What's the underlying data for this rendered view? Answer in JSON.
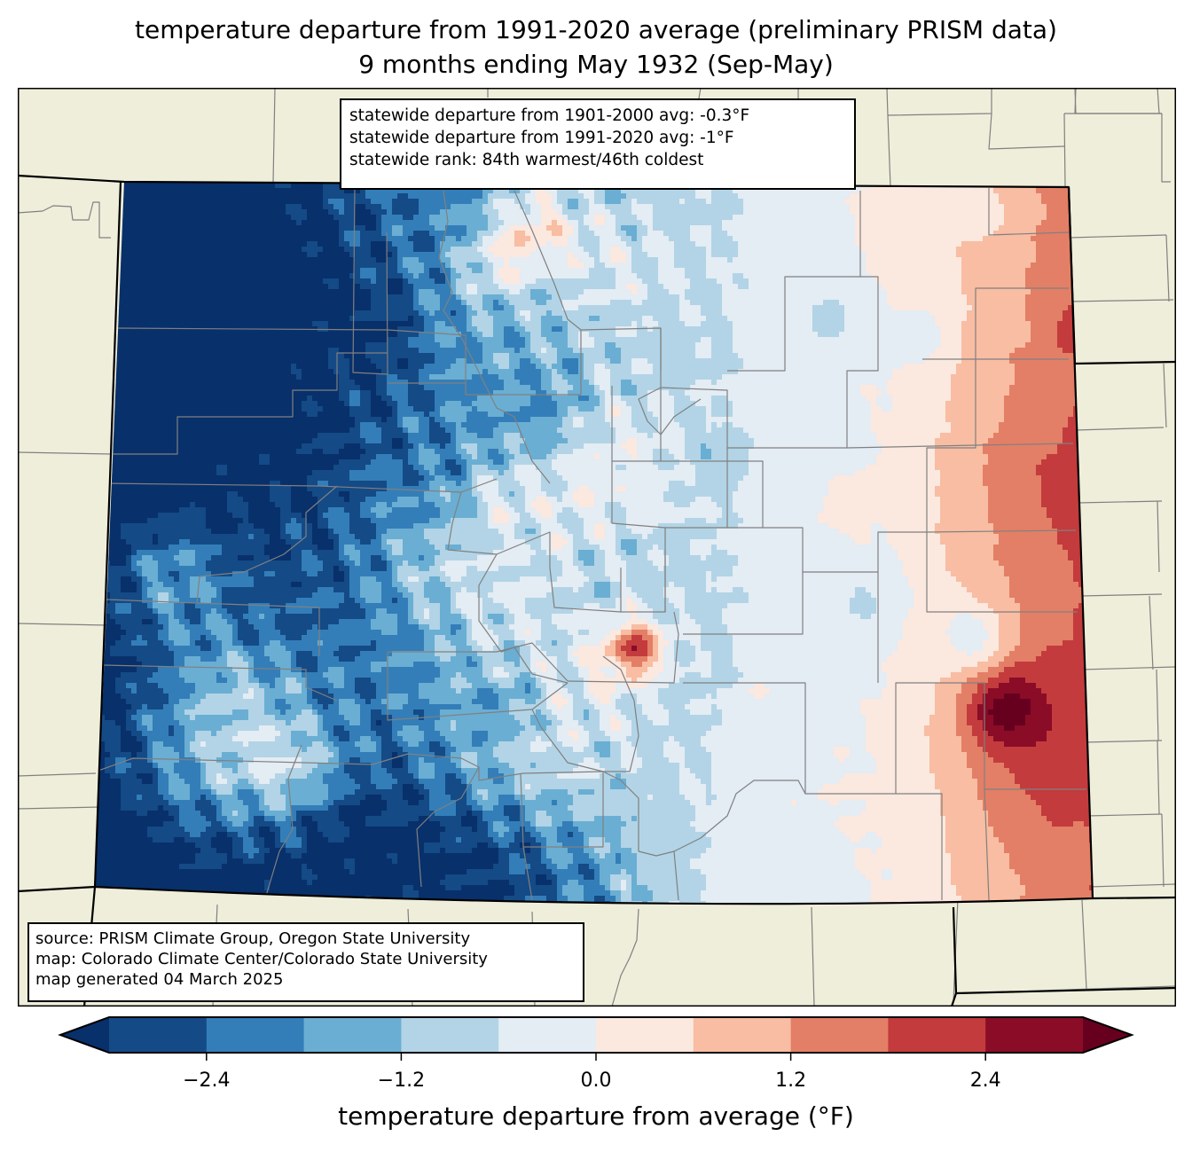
{
  "header": {
    "title_line1": "temperature departure from 1991-2020 average (preliminary PRISM data)",
    "title_line2": "9 months ending May 1932 (Sep-May)"
  },
  "stats_box": {
    "line1": "statewide departure from 1901-2000 avg: -0.3°F",
    "line2": "statewide departure from 1991-2020 avg: -1°F",
    "line3": "statewide rank: 84th warmest/46th coldest"
  },
  "source_box": {
    "line1": "source: PRISM Climate Group, Oregon State University",
    "line2": "map: Colorado Climate Center/Colorado State University",
    "line3": "map generated 04 March 2025"
  },
  "chart_data": {
    "type": "heatmap",
    "title": "temperature departure from 1991-2020 average (preliminary PRISM data)",
    "subtitle": "9 months ending May 1932 (Sep-May)",
    "region": "Colorado",
    "colorbar": {
      "label": "temperature departure from average (°F)",
      "levels": [
        -3.0,
        -2.4,
        -1.8,
        -1.2,
        -0.6,
        0.0,
        0.6,
        1.2,
        1.8,
        2.4,
        3.0
      ],
      "tick_values": [
        -2.4,
        -1.2,
        0.0,
        1.2,
        2.4
      ],
      "tick_labels": [
        "−2.4",
        "−1.2",
        "0.0",
        "1.2",
        "2.4"
      ],
      "extend": "both",
      "under_color": "#08306b",
      "over_color": "#67001f",
      "bin_colors": [
        "#144a86",
        "#337eb8",
        "#6aaed3",
        "#b2d4e6",
        "#e4ecf4",
        "#fbe8df",
        "#f8bda2",
        "#e37f66",
        "#c33b3d",
        "#8a0c27"
      ]
    },
    "statewide_departure_1901_2000_F": -0.3,
    "statewide_departure_1991_2020_F": -1,
    "rank_warmest": 84,
    "rank_coldest": 46
  },
  "colors": {
    "land": "#efeedb",
    "county_line": "#808080",
    "state_line": "#000000"
  }
}
